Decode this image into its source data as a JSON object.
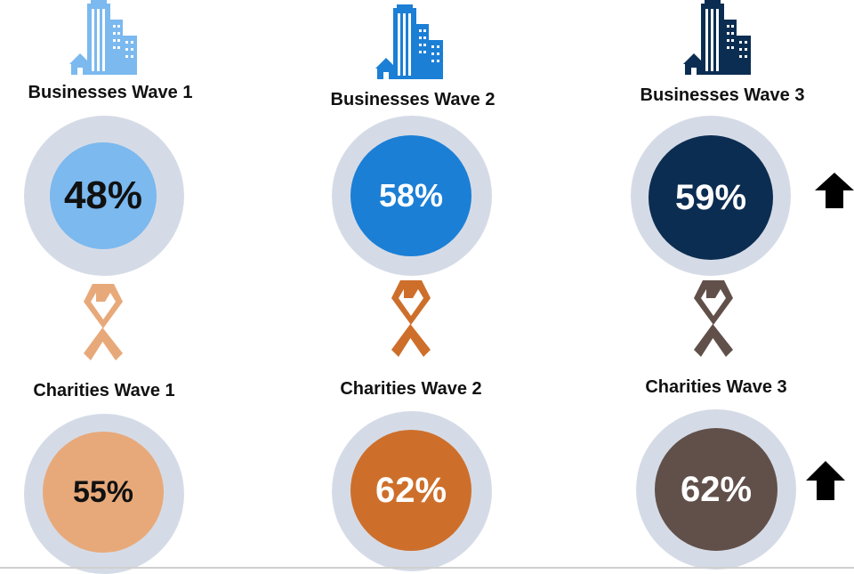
{
  "chart_data": {
    "type": "table",
    "panels": [
      {
        "label": "Businesses Wave 1",
        "value": 48,
        "display": "48%",
        "color": "#7bb9ef",
        "text_color": "#111111",
        "icon": "building-icon"
      },
      {
        "label": "Businesses Wave 2",
        "value": 58,
        "display": "58%",
        "color": "#1b7fd6",
        "text_color": "#ffffff",
        "icon": "building-icon"
      },
      {
        "label": "Businesses Wave 3",
        "value": 59,
        "display": "59%",
        "color": "#0c2d52",
        "text_color": "#ffffff",
        "icon": "building-icon",
        "indicator": "up-arrow-icon"
      },
      {
        "label": "Charities Wave 1",
        "value": 55,
        "display": "55%",
        "color": "#e8a97a",
        "text_color": "#111111",
        "icon": "ribbon-icon"
      },
      {
        "label": "Charities Wave 2",
        "value": 62,
        "display": "62%",
        "color": "#cd6f2b",
        "text_color": "#ffffff",
        "icon": "ribbon-icon"
      },
      {
        "label": "Charities Wave 3",
        "value": 62,
        "display": "62%",
        "color": "#61504a",
        "text_color": "#ffffff",
        "icon": "ribbon-icon",
        "indicator": "up-arrow-icon"
      }
    ]
  },
  "colors": {
    "ring": "#d5dbe6",
    "building_wave1": "#7bb9ef",
    "building_wave2": "#1b7fd6",
    "building_wave3": "#0c2d52",
    "ribbon_wave1": "#e8a97a",
    "ribbon_wave2": "#cd6f2b",
    "ribbon_wave3": "#61504a"
  }
}
